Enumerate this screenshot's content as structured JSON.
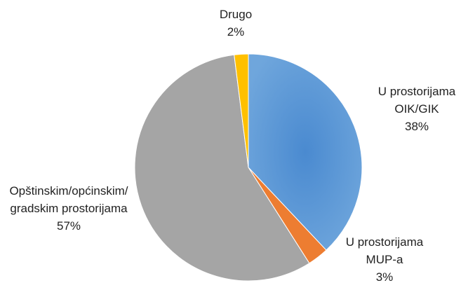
{
  "chart_data": {
    "type": "pie",
    "categories": [
      "U prostorijama OIK/GIK",
      "U prostorijama MUP-a",
      "Opštinskim/općinskim/ gradskim prostorijama",
      "Drugo"
    ],
    "values": [
      38,
      3,
      57,
      2
    ],
    "value_labels": [
      "38%",
      "3%",
      "57%",
      "2%"
    ],
    "colors": [
      "#5b9bd5",
      "#ed7d31",
      "#a5a5a5",
      "#ffc000"
    ]
  }
}
